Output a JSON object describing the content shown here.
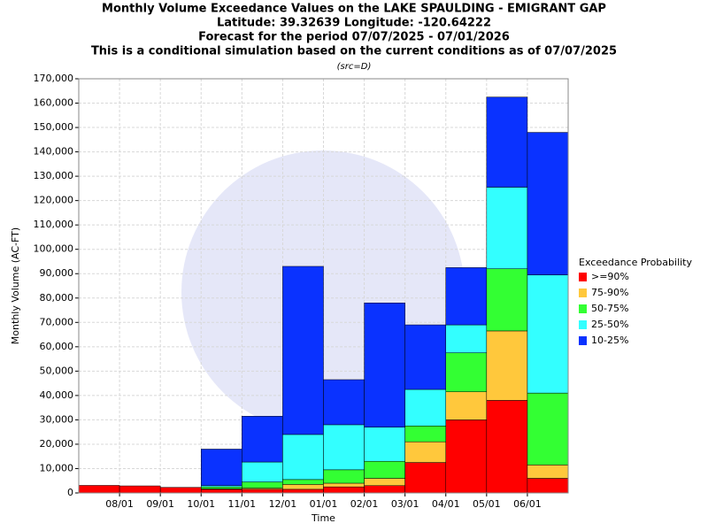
{
  "chart_data": {
    "type": "stacked_bar",
    "title": [
      "Monthly Volume Exceedance Values on the LAKE SPAULDING - EMIGRANT GAP",
      "Latitude: 39.32639 Longitude: -120.64222",
      "Forecast for the period 07/07/2025 - 07/01/2026",
      "This is a conditional simulation based on the current conditions as of 07/07/2025"
    ],
    "subtitle": "(src=D)",
    "x_label": "Time",
    "y_label": "Monthly Volume (AC-FT)",
    "legend_title": "Exceedance Probability",
    "legend": "right",
    "grid": true,
    "categories": [
      null,
      null,
      null,
      null,
      null,
      null,
      null,
      null,
      null,
      null,
      null,
      null
    ],
    "xticks": [
      "08/01",
      "09/01",
      "10/01",
      "11/01",
      "12/01",
      "01/01",
      "02/01",
      "03/01",
      "04/01",
      "05/01",
      "06/01"
    ],
    "ylim": [
      0,
      170000
    ],
    "yticks": [
      0,
      {
        "value": 10000,
        "label": "10,000"
      },
      {
        "value": 20000,
        "label": "20,000"
      },
      {
        "value": 30000,
        "label": "30,000"
      },
      {
        "value": 40000,
        "label": "40,000"
      },
      {
        "value": 50000,
        "label": "50,000"
      },
      {
        "value": 60000,
        "label": "60,000"
      },
      {
        "value": 70000,
        "label": "70,000"
      },
      {
        "value": 80000,
        "label": "80,000"
      },
      {
        "value": 90000,
        "label": "90,000"
      },
      {
        "value": 100000,
        "label": "100,000"
      },
      {
        "value": 110000,
        "label": "110,000"
      },
      {
        "value": 120000,
        "label": "120,000"
      },
      {
        "value": 130000,
        "label": "130,000"
      },
      {
        "value": 140000,
        "label": "140,000"
      },
      {
        "value": 150000,
        "label": "150,000"
      },
      {
        "value": 160000,
        "label": "160,000"
      },
      {
        "value": 170000,
        "label": "170,000"
      }
    ],
    "series": [
      {
        "name": ">=90%",
        "color": "#ff0000",
        "values": [
          3100,
          2900,
          2300,
          1500,
          1500,
          1500,
          2500,
          3000,
          12500,
          30000,
          38000,
          6000
        ]
      },
      {
        "name": "75-90%",
        "color": "#ffc83c",
        "values": [
          0,
          0,
          0,
          200,
          500,
          2000,
          1500,
          3000,
          8500,
          11500,
          28500,
          5500
        ]
      },
      {
        "name": "50-75%",
        "color": "#33ff33",
        "values": [
          0,
          0,
          0,
          800,
          2500,
          2000,
          5500,
          7000,
          6500,
          16000,
          25500,
          29500
        ]
      },
      {
        "name": "25-50%",
        "color": "#33ffff",
        "values": [
          0,
          0,
          0,
          500,
          8200,
          18500,
          18500,
          14000,
          15000,
          11500,
          33500,
          48500
        ]
      },
      {
        "name": "10-25%",
        "color": "#0a32ff",
        "values": [
          0,
          0,
          0,
          15000,
          18800,
          69000,
          18500,
          51000,
          26500,
          23500,
          37000,
          58500
        ]
      }
    ]
  }
}
